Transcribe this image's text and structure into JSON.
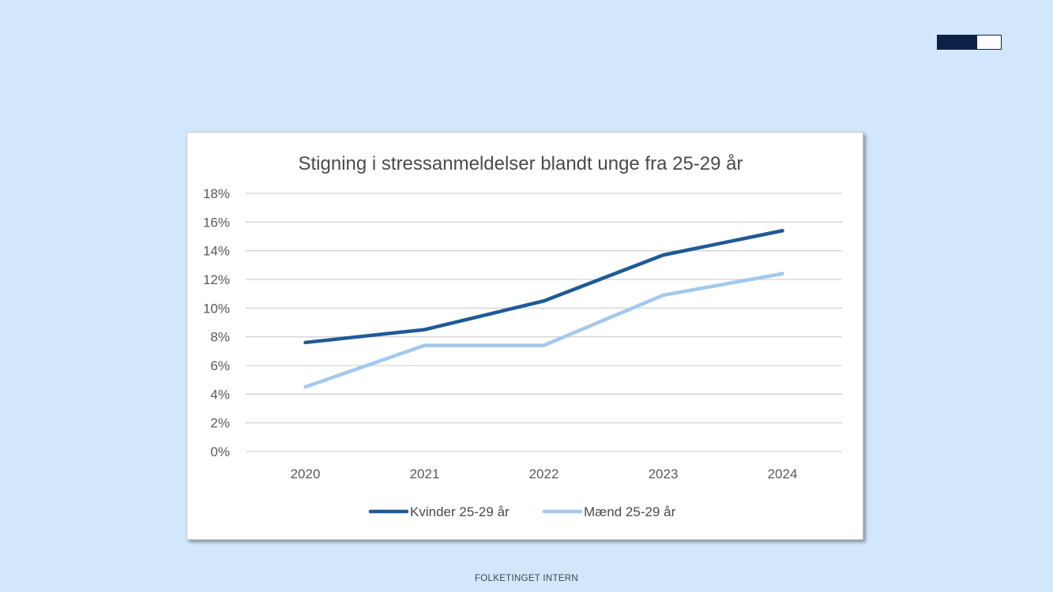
{
  "badge": {
    "progress": 0.63,
    "fill_color": "#0d2244",
    "empty_color": "#ffffff"
  },
  "footer": {
    "text": "FOLKETINGET INTERN"
  },
  "chart_data": {
    "type": "line",
    "title": "Stigning i stressanmeldelser blandt unge fra 25-29 år",
    "categories": [
      "2020",
      "2021",
      "2022",
      "2023",
      "2024"
    ],
    "series": [
      {
        "name": "Kvinder 25-29 år",
        "color": "#1f5a96",
        "values": [
          7.6,
          8.5,
          10.5,
          13.7,
          15.4
        ]
      },
      {
        "name": "Mænd 25-29 år",
        "color": "#a3c8ec",
        "values": [
          4.5,
          7.4,
          7.4,
          10.9,
          12.4
        ]
      }
    ],
    "ylim": [
      0,
      18
    ],
    "yticks": [
      "0%",
      "2%",
      "4%",
      "6%",
      "8%",
      "10%",
      "12%",
      "14%",
      "16%",
      "18%"
    ],
    "grid": true,
    "legend": "bottom"
  }
}
